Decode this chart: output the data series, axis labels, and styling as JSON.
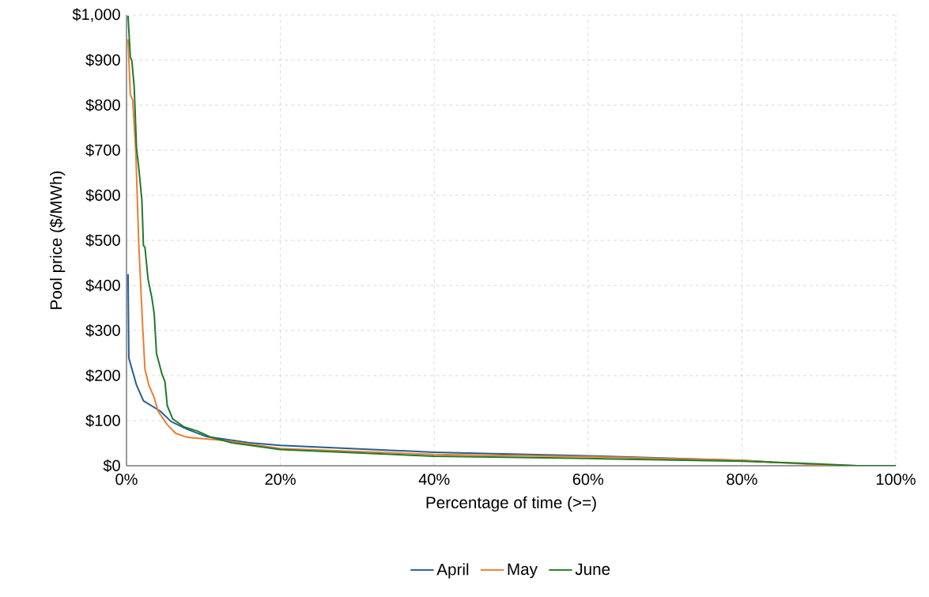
{
  "chart_data": {
    "type": "line",
    "xlabel": "Percentage of time (>=)",
    "ylabel": "Pool price ($/MWh)",
    "x": [
      0.2,
      0.3,
      1.3,
      2.2,
      4.4,
      5.8,
      7.9,
      10.3,
      16,
      20,
      40,
      60,
      80,
      84
    ],
    "series": [
      {
        "name": "April",
        "color": "#255e91",
        "values": [
          425,
          239,
          179,
          144,
          121,
          98,
          81,
          65,
          51,
          45,
          30,
          22,
          12,
          8
        ]
      },
      {
        "name": "May",
        "color": "#ed7d31",
        "x": [
          0.2,
          0.5,
          0.8,
          1.2,
          1.6,
          2.1,
          2.4,
          2.9,
          3.6,
          4.1,
          5.3,
          6.4,
          7.9,
          12.6,
          20,
          40,
          60,
          80,
          90,
          95,
          100
        ],
        "values": [
          946,
          823,
          811,
          700,
          489,
          309,
          214,
          179,
          151,
          121,
          91,
          72,
          63,
          56,
          38,
          25,
          20,
          12,
          2,
          0,
          0
        ]
      },
      {
        "name": "June",
        "color": "#1f7a2b",
        "x": [
          0.2,
          0.5,
          0.7,
          1.0,
          1.3,
          1.6,
          2.0,
          2.2,
          2.4,
          2.8,
          3.3,
          3.6,
          3.9,
          4.6,
          5.0,
          5.3,
          6.0,
          7.5,
          9.2,
          11,
          13.7,
          20,
          40,
          60,
          80,
          90,
          95,
          100
        ],
        "values": [
          998,
          907,
          898,
          840,
          705,
          660,
          589,
          489,
          484,
          414,
          372,
          337,
          249,
          204,
          186,
          133,
          104,
          86,
          77,
          63,
          51,
          36,
          21,
          16,
          10,
          4,
          0,
          0
        ]
      }
    ],
    "xlim": [
      0,
      100
    ],
    "ylim": [
      0,
      1000
    ],
    "xticks": [
      {
        "value": 0,
        "label": "0%"
      },
      {
        "value": 20,
        "label": "20%"
      },
      {
        "value": 40,
        "label": "40%"
      },
      {
        "value": 60,
        "label": "60%"
      },
      {
        "value": 80,
        "label": "80%"
      },
      {
        "value": 100,
        "label": "100%"
      }
    ],
    "yticks": [
      {
        "value": 0,
        "label": "$0"
      },
      {
        "value": 100,
        "label": "$100"
      },
      {
        "value": 200,
        "label": "$200"
      },
      {
        "value": 300,
        "label": "$300"
      },
      {
        "value": 400,
        "label": "$400"
      },
      {
        "value": 500,
        "label": "$500"
      },
      {
        "value": 600,
        "label": "$600"
      },
      {
        "value": 700,
        "label": "$700"
      },
      {
        "value": 800,
        "label": "$800"
      },
      {
        "value": 900,
        "label": "$900"
      },
      {
        "value": 1000,
        "label": "$1,000"
      }
    ],
    "grid": true,
    "legend": "bottom",
    "line_style": "solid"
  }
}
